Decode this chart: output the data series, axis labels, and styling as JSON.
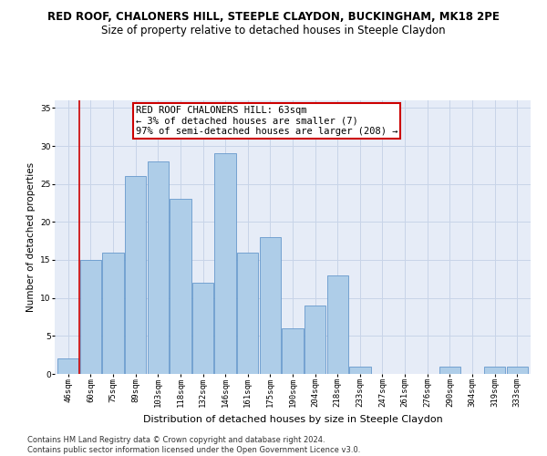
{
  "title1": "RED ROOF, CHALONERS HILL, STEEPLE CLAYDON, BUCKINGHAM, MK18 2PE",
  "title2": "Size of property relative to detached houses in Steeple Claydon",
  "xlabel": "Distribution of detached houses by size in Steeple Claydon",
  "ylabel": "Number of detached properties",
  "categories": [
    "46sqm",
    "60sqm",
    "75sqm",
    "89sqm",
    "103sqm",
    "118sqm",
    "132sqm",
    "146sqm",
    "161sqm",
    "175sqm",
    "190sqm",
    "204sqm",
    "218sqm",
    "233sqm",
    "247sqm",
    "261sqm",
    "276sqm",
    "290sqm",
    "304sqm",
    "319sqm",
    "333sqm"
  ],
  "values": [
    2,
    15,
    16,
    26,
    28,
    23,
    12,
    29,
    16,
    18,
    6,
    9,
    13,
    1,
    0,
    0,
    0,
    1,
    0,
    1,
    1
  ],
  "bar_color": "#aecde8",
  "bar_edge_color": "#6699cc",
  "vline_color": "#cc0000",
  "annotation_text": "RED ROOF CHALONERS HILL: 63sqm\n← 3% of detached houses are smaller (7)\n97% of semi-detached houses are larger (208) →",
  "annotation_box_color": "#ffffff",
  "annotation_box_edge_color": "#cc0000",
  "ylim": [
    0,
    36
  ],
  "yticks": [
    0,
    5,
    10,
    15,
    20,
    25,
    30,
    35
  ],
  "grid_color": "#c8d4e8",
  "bg_color": "#e6ecf7",
  "footnote": "Contains HM Land Registry data © Crown copyright and database right 2024.\nContains public sector information licensed under the Open Government Licence v3.0.",
  "title1_fontsize": 8.5,
  "title2_fontsize": 8.5,
  "xlabel_fontsize": 8,
  "ylabel_fontsize": 7.5,
  "tick_fontsize": 6.5,
  "annot_fontsize": 7.5,
  "footnote_fontsize": 6
}
